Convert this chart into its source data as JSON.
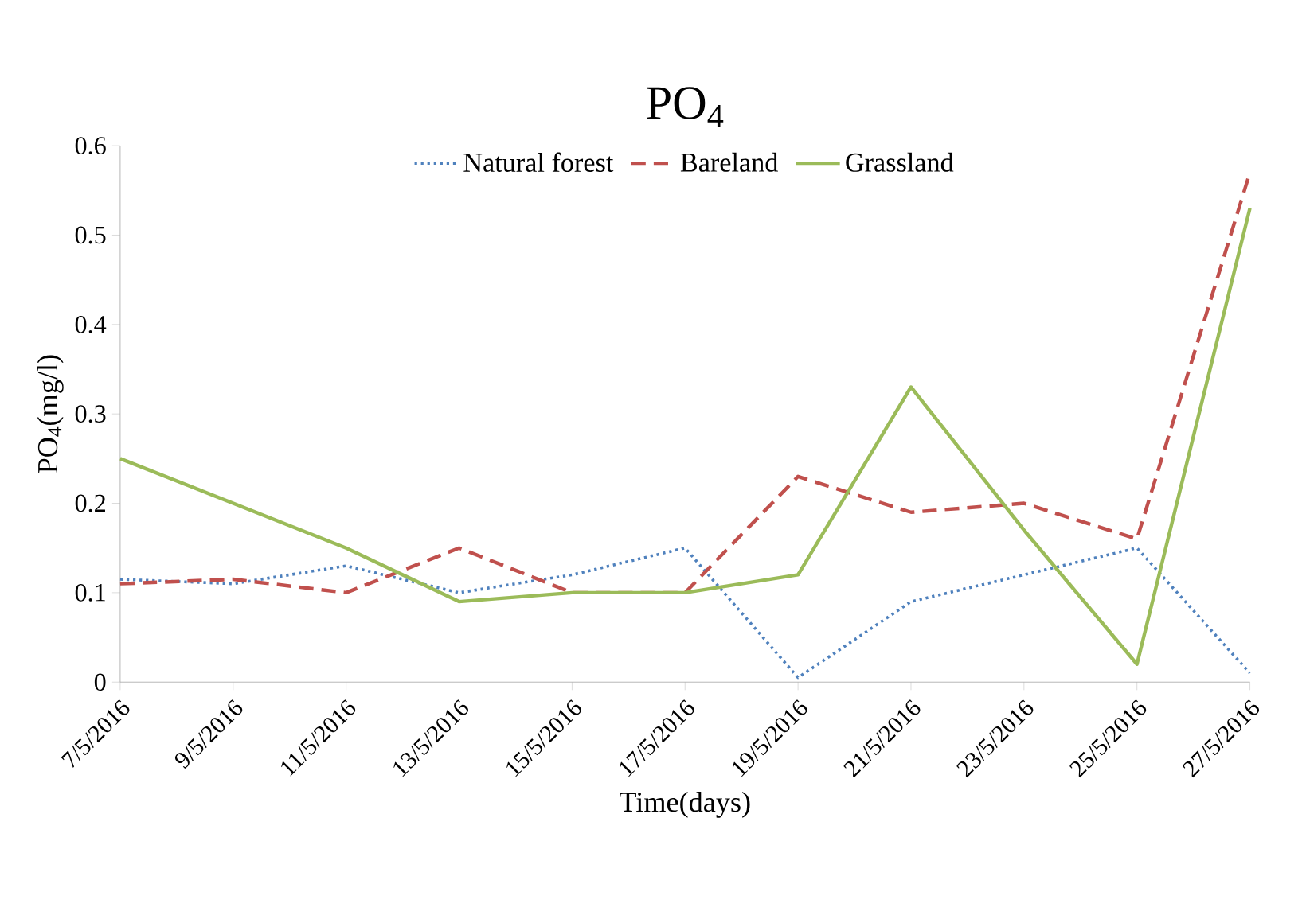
{
  "chart_data": {
    "type": "line",
    "title": "PO$_{4}$",
    "xlabel": "Time(days)",
    "ylabel": "PO$_{4}$(mg/l)",
    "categories": [
      "7/5/2016",
      "9/5/2016",
      "11/5/2016",
      "13/5/2016",
      "15/5/2016",
      "17/5/2016",
      "19/5/2016",
      "21/5/2016",
      "23/5/2016",
      "25/5/2016",
      "27/5/2016"
    ],
    "series": [
      {
        "name": "Natural forest",
        "color": "#4f81bd",
        "line_style": "dotted",
        "values": [
          0.115,
          0.11,
          0.13,
          0.1,
          0.12,
          0.15,
          0.005,
          0.09,
          0.12,
          0.15,
          0.01
        ]
      },
      {
        "name": "Bareland",
        "color": "#c0504d",
        "line_style": "dashed",
        "values": [
          0.11,
          0.115,
          0.1,
          0.15,
          0.1,
          0.1,
          0.23,
          0.19,
          0.2,
          0.16,
          0.57
        ]
      },
      {
        "name": "Grassland",
        "color": "#9bbb59",
        "line_style": "solid",
        "values": [
          0.25,
          0.2,
          0.15,
          0.09,
          0.1,
          0.1,
          0.12,
          0.33,
          0.17,
          0.02,
          0.53
        ]
      }
    ],
    "ylim": [
      0,
      0.6
    ],
    "yticks": [
      0,
      0.1,
      0.2,
      0.3,
      0.4,
      0.5,
      0.6
    ],
    "grid": false,
    "legend": "top",
    "marker": "none"
  }
}
